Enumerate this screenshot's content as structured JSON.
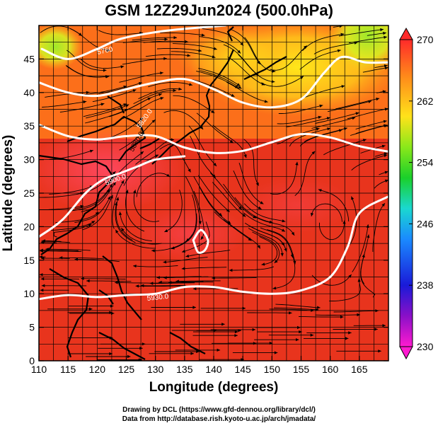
{
  "title": "GSM 12Z29Jun2024 (500.0hPa)",
  "x_axis": {
    "label": "Longitude (degrees)",
    "ticks": [
      "110",
      "115",
      "120",
      "125",
      "130",
      "135",
      "140",
      "145",
      "150",
      "155",
      "160",
      "165"
    ]
  },
  "y_axis": {
    "label": "Latitude  (degrees)",
    "ticks": [
      "0",
      "5",
      "10",
      "15",
      "20",
      "25",
      "30",
      "35",
      "40",
      "45"
    ]
  },
  "colorbar": {
    "labels": [
      "270",
      "262",
      "254",
      "246",
      "238",
      "230"
    ]
  },
  "contour_labels": [
    "5760",
    "5820.0",
    "5880.0",
    "5900.0",
    "5930.0"
  ],
  "credits": {
    "line1": "Drawing by DCL (https://www.gfd-dennou.org/library/dcl/)",
    "line2": "Data from http://database.rish.kyoto-u.ac.jp/arch/jmadata/"
  },
  "chart_data": {
    "type": "heatmap",
    "title": "GSM 12Z29Jun2024 (500.0hPa)",
    "xlabel": "Longitude (degrees)",
    "ylabel": "Latitude  (degrees)",
    "xlim": [
      110,
      170
    ],
    "ylim": [
      0,
      50
    ],
    "colorbar_range": [
      230,
      270
    ],
    "colorbar_ticks": [
      230,
      238,
      246,
      254,
      262,
      270
    ],
    "colors": {
      "warm_core": "#e8331d",
      "hot_band": "#ff3c52",
      "orange": "#ff8c1a",
      "yellow": "#ffe21a",
      "green": "#aaee22",
      "contour": "#ffffff",
      "streamline": "#000000"
    },
    "contours": [
      {
        "label": "5760",
        "points": [
          [
            110.5,
            46.5
          ],
          [
            115,
            45
          ],
          [
            120,
            46.5
          ],
          [
            124,
            48
          ],
          [
            130,
            49
          ],
          [
            135,
            49.5
          ],
          [
            142,
            50
          ]
        ]
      },
      {
        "label": "5820.0",
        "points": [
          [
            110,
            41.5
          ],
          [
            115,
            40
          ],
          [
            120,
            39.5
          ],
          [
            125,
            40.5
          ],
          [
            130,
            41.5
          ],
          [
            135,
            42
          ],
          [
            140,
            40.5
          ],
          [
            145,
            38.5
          ],
          [
            150,
            37.8
          ],
          [
            155,
            39
          ],
          [
            159,
            43
          ],
          [
            162,
            45.3
          ],
          [
            166,
            44.5
          ],
          [
            170,
            44.5
          ]
        ]
      },
      {
        "label": "5880.0",
        "points": [
          [
            110,
            35.2
          ],
          [
            115,
            33.5
          ],
          [
            120,
            33
          ],
          [
            125,
            33.5
          ],
          [
            130,
            33.5
          ],
          [
            135,
            31.8
          ],
          [
            140,
            31
          ],
          [
            145,
            31.3
          ],
          [
            150,
            32.6
          ],
          [
            155,
            33.8
          ],
          [
            160,
            33.3
          ],
          [
            165,
            32
          ],
          [
            170,
            31.2
          ]
        ]
      },
      {
        "label": "5900.0",
        "points": [
          [
            110,
            18.5
          ],
          [
            114,
            21
          ],
          [
            118,
            25
          ],
          [
            121,
            27
          ],
          [
            124,
            28
          ],
          [
            127,
            29
          ],
          [
            130,
            30
          ],
          [
            135,
            30.5
          ]
        ]
      },
      {
        "label": "5930.0",
        "points": [
          [
            110,
            9.2
          ],
          [
            115,
            9.8
          ],
          [
            120,
            9.5
          ],
          [
            125,
            9.8
          ],
          [
            130,
            10
          ],
          [
            135,
            11
          ],
          [
            140,
            11
          ],
          [
            145,
            10.3
          ],
          [
            150,
            10
          ],
          [
            155,
            10.5
          ],
          [
            160,
            12.5
          ],
          [
            163,
            17
          ],
          [
            165,
            22
          ],
          [
            170,
            24.5
          ]
        ]
      },
      {
        "label": "",
        "points": [
          [
            136.5,
            18
          ],
          [
            137.8,
            19.5
          ],
          [
            139,
            18
          ],
          [
            138.5,
            16.5
          ],
          [
            137.3,
            16.2
          ],
          [
            136.5,
            18
          ]
        ]
      }
    ],
    "vortex_centers": [
      [
        130,
        25
      ],
      [
        150,
        27
      ],
      [
        113,
        47
      ],
      [
        150,
        43
      ],
      [
        133,
        36
      ],
      [
        160,
        20
      ]
    ]
  }
}
